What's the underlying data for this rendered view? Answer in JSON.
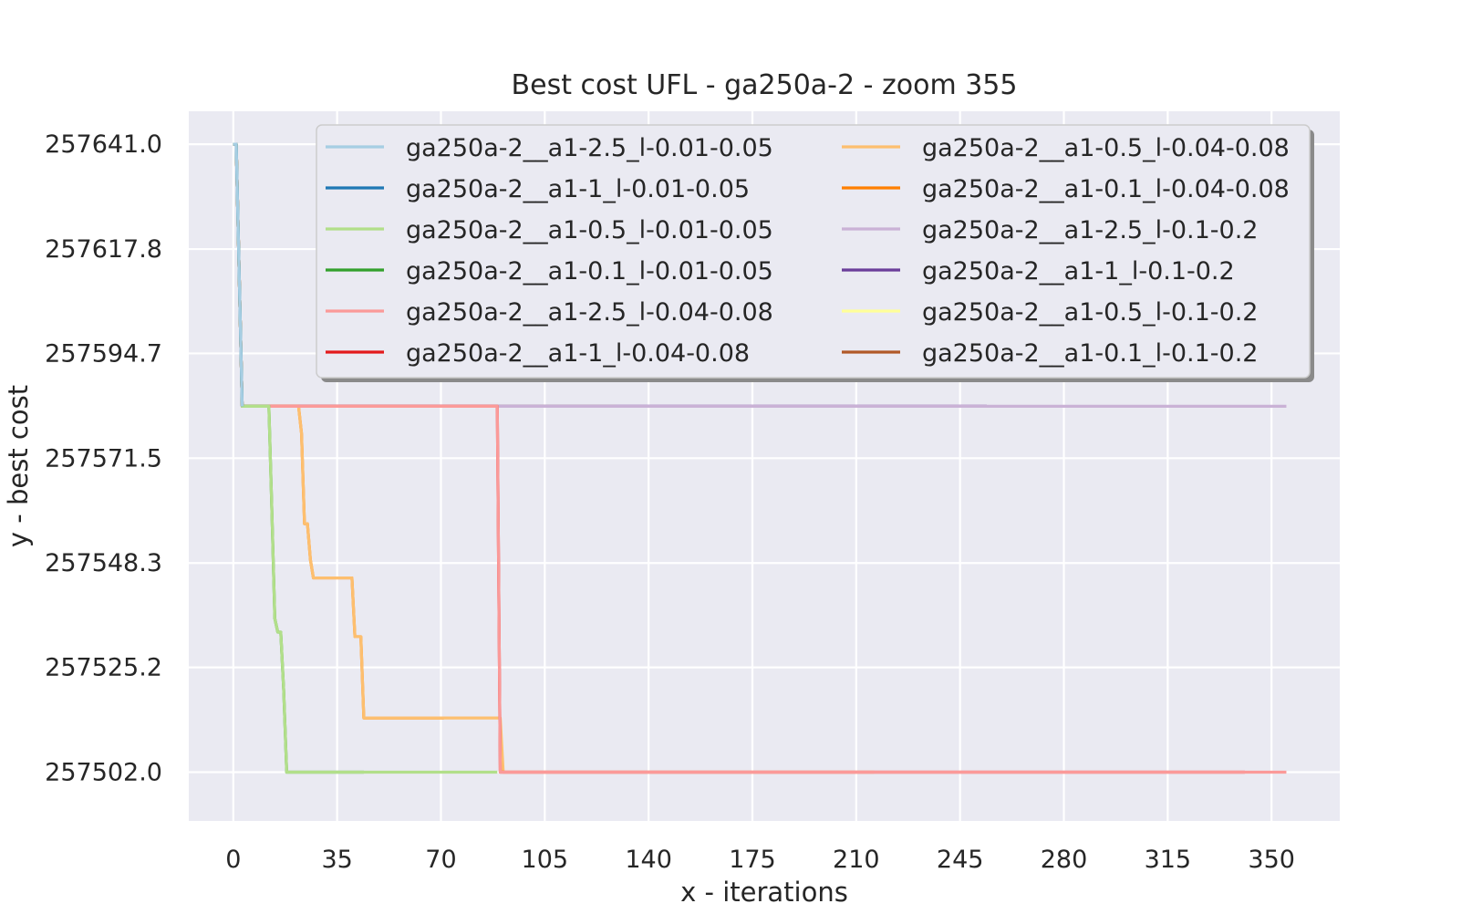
{
  "chart_data": {
    "type": "line",
    "title": "Best cost UFL - ga250a-2 - zoom 355",
    "xlabel": "x - iterations",
    "ylabel": "y - best cost",
    "xlim": [
      -15,
      373
    ],
    "ylim": [
      257491.2,
      257648.3
    ],
    "xticks": [
      0,
      35,
      70,
      105,
      140,
      175,
      210,
      245,
      280,
      315,
      350
    ],
    "xtick_labels": [
      "0",
      "35",
      "70",
      "105",
      "140",
      "175",
      "210",
      "245",
      "280",
      "315",
      "350"
    ],
    "yticks": [
      257641.0,
      257617.8,
      257594.7,
      257571.5,
      257548.3,
      257525.2,
      257502.0
    ],
    "ytick_labels": [
      "257641.0",
      "257617.8",
      "257594.7",
      "257571.5",
      "257548.3",
      "257525.2",
      "257502.0"
    ],
    "grid": true,
    "legend_position": "top-right",
    "legend_columns": 2,
    "series": [
      {
        "name": "ga250a-2__a1-2.5_l-0.01-0.05",
        "color": "#a6cee3",
        "x": [
          0,
          1,
          3
        ],
        "y": [
          257641.0,
          257641.0,
          257583.0
        ]
      },
      {
        "name": "ga250a-2__a1-1_l-0.01-0.05",
        "color": "#1f78b4",
        "x": [
          0,
          1,
          3
        ],
        "y": [
          257641.0,
          257641.0,
          257583.0
        ]
      },
      {
        "name": "ga250a-2__a1-0.5_l-0.01-0.05",
        "color": "#b2df8a",
        "x": [
          0,
          1,
          3,
          12,
          13,
          14,
          15,
          16,
          17,
          18,
          44,
          89
        ],
        "y": [
          257641.0,
          257641.0,
          257583.0,
          257583.0,
          257560.0,
          257536.0,
          257533.0,
          257533.0,
          257520.0,
          257502.0,
          257502.0,
          257502.0
        ]
      },
      {
        "name": "ga250a-2__a1-0.1_l-0.01-0.05",
        "color": "#33a02c",
        "x": [
          0,
          1,
          3,
          12,
          13,
          14,
          15,
          16,
          17,
          18,
          44
        ],
        "y": [
          257641.0,
          257641.0,
          257583.0,
          257583.0,
          257560.0,
          257536.0,
          257533.0,
          257533.0,
          257520.0,
          257502.0,
          257502.0
        ]
      },
      {
        "name": "ga250a-2__a1-2.5_l-0.04-0.08",
        "color": "#fb9a99",
        "x": [
          0,
          1,
          3,
          89,
          90,
          355
        ],
        "y": [
          257641.0,
          257641.0,
          257583.0,
          257583.0,
          257502.0,
          257502.0
        ]
      },
      {
        "name": "ga250a-2__a1-1_l-0.04-0.08",
        "color": "#e31a1c",
        "x": [
          0,
          1,
          3,
          89,
          90,
          341
        ],
        "y": [
          257641.0,
          257641.0,
          257583.0,
          257583.0,
          257502.0,
          257502.0
        ]
      },
      {
        "name": "ga250a-2__a1-0.5_l-0.04-0.08",
        "color": "#fdbf6f",
        "x": [
          0,
          1,
          3,
          22,
          23,
          24,
          25,
          26,
          27,
          28,
          36,
          40,
          41,
          43,
          44,
          45,
          90,
          91,
          92,
          216
        ],
        "y": [
          257641.0,
          257641.0,
          257583.0,
          257583.0,
          257577.0,
          257557.0,
          257557.0,
          257549.0,
          257545.0,
          257545.0,
          257545.0,
          257545.0,
          257532.0,
          257532.0,
          257514.0,
          257514.0,
          257514.0,
          257502.0,
          257502.0,
          257502.0
        ]
      },
      {
        "name": "ga250a-2__a1-0.1_l-0.04-0.08",
        "color": "#ff7f00",
        "x": [
          0,
          1,
          3,
          22,
          23,
          24,
          25,
          26,
          27,
          28,
          36,
          40,
          41,
          43,
          44,
          45,
          71
        ],
        "y": [
          257641.0,
          257641.0,
          257583.0,
          257583.0,
          257577.0,
          257557.0,
          257557.0,
          257549.0,
          257545.0,
          257545.0,
          257545.0,
          257545.0,
          257532.0,
          257532.0,
          257514.0,
          257514.0,
          257514.0
        ]
      },
      {
        "name": "ga250a-2__a1-2.5_l-0.1-0.2",
        "color": "#cab2d6",
        "x": [
          0,
          1,
          3,
          355
        ],
        "y": [
          257641.0,
          257641.0,
          257583.0,
          257583.0
        ]
      },
      {
        "name": "ga250a-2__a1-1_l-0.1-0.2",
        "color": "#6a3d9a",
        "x": [
          0,
          1,
          3,
          254
        ],
        "y": [
          257641.0,
          257641.0,
          257583.0,
          257583.0
        ]
      },
      {
        "name": "ga250a-2__a1-0.5_l-0.1-0.2",
        "color": "#ffff99",
        "x": [
          0,
          1,
          3,
          129
        ],
        "y": [
          257641.0,
          257641.0,
          257583.0,
          257583.0
        ]
      },
      {
        "name": "ga250a-2__a1-0.1_l-0.1-0.2",
        "color": "#b15928",
        "x": [
          0,
          1,
          3,
          29
        ],
        "y": [
          257641.0,
          257641.0,
          257583.0,
          257583.0
        ]
      }
    ]
  }
}
